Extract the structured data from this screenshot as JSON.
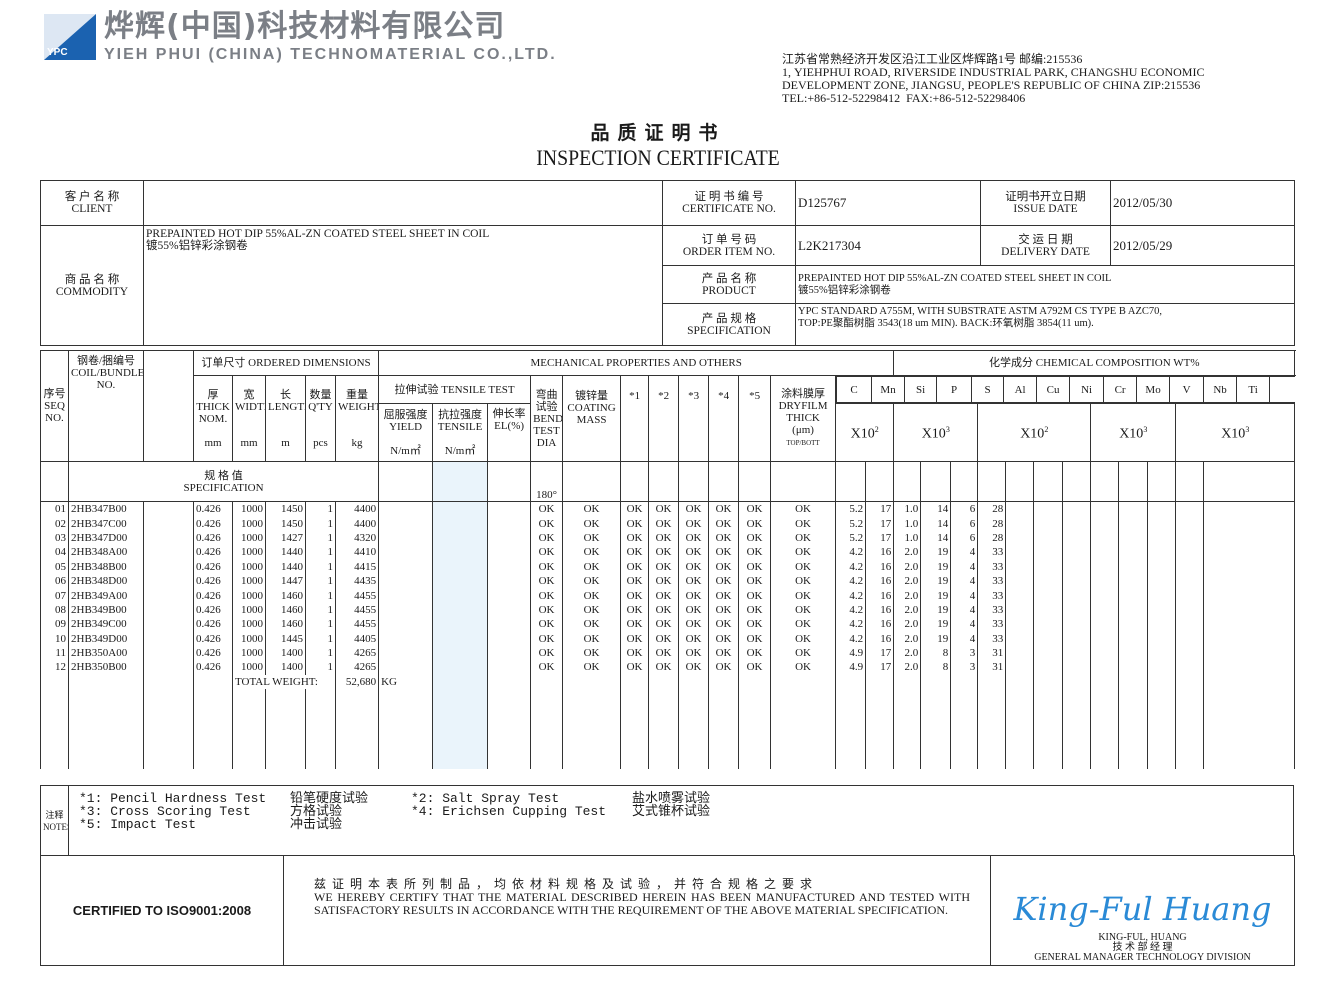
{
  "company": {
    "logo_text": "YPC",
    "name_cn": "烨辉(中国)科技材料有限公司",
    "name_en": "YIEH PHUI (CHINA) TECHNOMATERIAL CO.,LTD.",
    "address": "江苏省常熟经济开发区沿江工业区烨辉路1号 邮编:215536\n1, YIEHPHUI ROAD, RIVERSIDE INDUSTRIAL PARK, CHANGSHU ECONOMIC\nDEVELOPMENT ZONE, JIANGSU, PEOPLE'S REPUBLIC OF CHINA ZIP:215536\nTEL:+86-512-52298412  FAX:+86-512-52298406"
  },
  "title": {
    "cn": "品质证明书",
    "en": "INSPECTION CERTIFICATE"
  },
  "info": {
    "client_label_cn": "客 户 名 称",
    "client_label_en": "CLIENT",
    "client_value": "",
    "cert_no_label_cn": "证 明 书 编 号",
    "cert_no_label_en": "CERTIFICATE NO.",
    "cert_no": "D125767",
    "issue_label_cn": "证明书开立日期",
    "issue_label_en": "ISSUE DATE",
    "issue_date": "2012/05/30",
    "commodity_label_cn": "商 品 名 称",
    "commodity_label_en": "COMMODITY",
    "commodity_en": "PREPAINTED HOT DIP 55%AL-ZN COATED STEEL SHEET IN COIL",
    "commodity_cn": "镀55%铝锌彩涂钢卷",
    "order_label_cn": "订 单 号 码",
    "order_label_en": "ORDER ITEM NO.",
    "order_no": "L2K217304",
    "delivery_label_cn": "交 运 日 期",
    "delivery_label_en": "DELIVERY DATE",
    "delivery_date": "2012/05/29",
    "product_label_cn": "产 品 名 称",
    "product_label_en": "PRODUCT",
    "product_en": "PREPAINTED HOT DIP 55%AL-ZN COATED STEEL SHEET IN COIL",
    "product_cn": "镀55%铝锌彩涂钢卷",
    "spec_label_cn": "产 品 规 格",
    "spec_label_en": "SPECIFICATION",
    "spec_line1": "YPC STANDARD A755M, WITH SUBSTRATE ASTM A792M CS TYPE B AZC70,",
    "spec_line2": "TOP:PE聚酯树脂 3543(18 um MIN).  BACK:环氧树脂 3854(11 um)."
  },
  "headers": {
    "seq_cn": "序号",
    "seq_en": "SEQ NO.",
    "coil_cn": "钢卷/捆编号",
    "coil_en": "COIL/BUNDLE NO.",
    "ordered_dims": "订单尺寸 ORDERED DIMENSIONS",
    "thick_cn": "厚",
    "thick_en": "THICK NOM.",
    "thick_unit": "mm",
    "width_cn": "宽",
    "width_en": "WIDTH",
    "width_unit": "mm",
    "length_cn": "长",
    "length_en": "LENGTH",
    "length_unit": "m",
    "qty_cn": "数量",
    "qty_en": "Q'TY",
    "qty_unit": "pcs",
    "weight_cn": "重量",
    "weight_en": "WEIGHT",
    "weight_unit": "kg",
    "mechanical": "MECHANICAL PROPERTIES AND OTHERS",
    "tensile_test": "拉伸试验 TENSILE TEST",
    "yield_cn": "屈服强度",
    "yield_en": "YIELD",
    "yield_unit": "N/m㎡",
    "tensile_cn": "抗拉强度",
    "tensile_en": "TENSILE",
    "tensile_unit": "N/m㎡",
    "el_cn": "伸长率",
    "el_en": "EL(%)",
    "bend_cn": "弯曲试验",
    "bend_en": "BEND TEST",
    "bend_unit": "DIA",
    "coating_cn": "镀锌量",
    "coating_en": "COATING MASS",
    "tests": [
      "*1",
      "*2",
      "*3",
      "*4",
      "*5"
    ],
    "dryfilm_cn": "涂料膜厚",
    "dryfilm_en": "DRYFILM THICK",
    "dryfilm_unit": "(μm)",
    "dryfilm_sub": "TOP/BOTT",
    "chemical": "化学成分 CHEMICAL COMPOSITION WT%",
    "elements": [
      "C",
      "Mn",
      "Si",
      "P",
      "S",
      "Al",
      "Cu",
      "Ni",
      "Cr",
      "Mo",
      "V",
      "Nb",
      "Ti"
    ],
    "mult": [
      {
        "base": "X10",
        "exp": "2"
      },
      {
        "base": "X10",
        "exp": "3"
      },
      {
        "base": "X10",
        "exp": "2"
      },
      {
        "base": "X10",
        "exp": "3"
      },
      {
        "base": "X10",
        "exp": "3"
      }
    ],
    "spec_cn": "规 格 值",
    "spec_en": "SPECIFICATION",
    "spec_bend": "180°"
  },
  "rows": [
    {
      "seq": "01",
      "coil": "2HB347B00",
      "thick": "0.426",
      "width": "1000",
      "length": "1450",
      "qty": "1",
      "weight": "4400",
      "chem": [
        "5.2",
        "17",
        "1.0",
        "14",
        "6",
        "28"
      ]
    },
    {
      "seq": "02",
      "coil": "2HB347C00",
      "thick": "0.426",
      "width": "1000",
      "length": "1450",
      "qty": "1",
      "weight": "4400",
      "chem": [
        "5.2",
        "17",
        "1.0",
        "14",
        "6",
        "28"
      ]
    },
    {
      "seq": "03",
      "coil": "2HB347D00",
      "thick": "0.426",
      "width": "1000",
      "length": "1427",
      "qty": "1",
      "weight": "4320",
      "chem": [
        "5.2",
        "17",
        "1.0",
        "14",
        "6",
        "28"
      ]
    },
    {
      "seq": "04",
      "coil": "2HB348A00",
      "thick": "0.426",
      "width": "1000",
      "length": "1440",
      "qty": "1",
      "weight": "4410",
      "chem": [
        "4.2",
        "16",
        "2.0",
        "19",
        "4",
        "33"
      ]
    },
    {
      "seq": "05",
      "coil": "2HB348B00",
      "thick": "0.426",
      "width": "1000",
      "length": "1440",
      "qty": "1",
      "weight": "4415",
      "chem": [
        "4.2",
        "16",
        "2.0",
        "19",
        "4",
        "33"
      ]
    },
    {
      "seq": "06",
      "coil": "2HB348D00",
      "thick": "0.426",
      "width": "1000",
      "length": "1447",
      "qty": "1",
      "weight": "4435",
      "chem": [
        "4.2",
        "16",
        "2.0",
        "19",
        "4",
        "33"
      ]
    },
    {
      "seq": "07",
      "coil": "2HB349A00",
      "thick": "0.426",
      "width": "1000",
      "length": "1460",
      "qty": "1",
      "weight": "4455",
      "chem": [
        "4.2",
        "16",
        "2.0",
        "19",
        "4",
        "33"
      ]
    },
    {
      "seq": "08",
      "coil": "2HB349B00",
      "thick": "0.426",
      "width": "1000",
      "length": "1460",
      "qty": "1",
      "weight": "4455",
      "chem": [
        "4.2",
        "16",
        "2.0",
        "19",
        "4",
        "33"
      ]
    },
    {
      "seq": "09",
      "coil": "2HB349C00",
      "thick": "0.426",
      "width": "1000",
      "length": "1460",
      "qty": "1",
      "weight": "4455",
      "chem": [
        "4.2",
        "16",
        "2.0",
        "19",
        "4",
        "33"
      ]
    },
    {
      "seq": "10",
      "coil": "2HB349D00",
      "thick": "0.426",
      "width": "1000",
      "length": "1445",
      "qty": "1",
      "weight": "4405",
      "chem": [
        "4.2",
        "16",
        "2.0",
        "19",
        "4",
        "33"
      ]
    },
    {
      "seq": "11",
      "coil": "2HB350A00",
      "thick": "0.426",
      "width": "1000",
      "length": "1400",
      "qty": "1",
      "weight": "4265",
      "chem": [
        "4.9",
        "17",
        "2.0",
        "8",
        "3",
        "31"
      ]
    },
    {
      "seq": "12",
      "coil": "2HB350B00",
      "thick": "0.426",
      "width": "1000",
      "length": "1400",
      "qty": "1",
      "weight": "4265",
      "chem": [
        "4.9",
        "17",
        "2.0",
        "8",
        "3",
        "31"
      ]
    }
  ],
  "ok_value": "OK",
  "total": {
    "label": "TOTAL WEIGHT:",
    "value": "52,680",
    "unit": "KG"
  },
  "notes": {
    "label_cn": "注释",
    "label_en": "NOTES",
    "items": [
      {
        "en": "*1: Pencil Hardness Test",
        "cn": "铅笔硬度试验"
      },
      {
        "en": "*2: Salt Spray Test",
        "cn": "盐水喷雾试验"
      },
      {
        "en": "*3: Cross Scoring Test",
        "cn": "方格试验"
      },
      {
        "en": "*4: Erichsen Cupping Test",
        "cn": "艾式锥杯试验"
      },
      {
        "en": "*5: Impact Test",
        "cn": "冲击试验"
      }
    ]
  },
  "footer": {
    "iso": "CERTIFIED TO ISO9001:2008",
    "statement_cn": "兹证明本表所列制品，均依材料规格及试验，并符合规格之要求",
    "statement_en": "WE HEREBY CERTIFY THAT THE MATERIAL DESCRIBED HEREIN HAS BEEN MANUFACTURED AND TESTED WITH SATISFACTORY RESULTS IN ACCORDANCE WITH THE REQUIREMENT OF THE ABOVE MATERIAL SPECIFICATION.",
    "signature": "King-Ful Huang",
    "signer": "KING-FUL, HUANG",
    "signer_title_cn": "技 术 部 经 理",
    "signer_title_en": "GENERAL MANAGER TECHNOLOGY DIVISION",
    "signature_color": "#2a8ad6"
  }
}
